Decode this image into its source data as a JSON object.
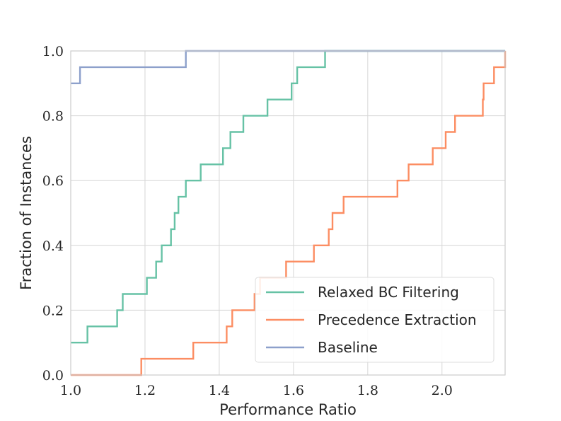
{
  "chart_data": {
    "type": "line",
    "step": true,
    "title": "",
    "xlabel": "Performance Ratio",
    "ylabel": "Fraction of Instances",
    "xlim": [
      1.0,
      2.17
    ],
    "ylim": [
      0.0,
      1.0
    ],
    "xticks": [
      "1.0",
      "1.2",
      "1.4",
      "1.6",
      "1.8",
      "2.0"
    ],
    "yticks": [
      "0.0",
      "0.2",
      "0.4",
      "0.6",
      "0.8",
      "1.0"
    ],
    "grid": true,
    "legend_position": "lower-right",
    "series": [
      {
        "name": "Relaxed BC Filtering",
        "color": "#66c2a5",
        "points": [
          [
            1.0,
            0.1
          ],
          [
            1.045,
            0.1
          ],
          [
            1.045,
            0.15
          ],
          [
            1.125,
            0.15
          ],
          [
            1.125,
            0.2
          ],
          [
            1.14,
            0.2
          ],
          [
            1.14,
            0.25
          ],
          [
            1.205,
            0.25
          ],
          [
            1.205,
            0.3
          ],
          [
            1.23,
            0.3
          ],
          [
            1.23,
            0.35
          ],
          [
            1.245,
            0.35
          ],
          [
            1.245,
            0.4
          ],
          [
            1.27,
            0.4
          ],
          [
            1.27,
            0.45
          ],
          [
            1.28,
            0.45
          ],
          [
            1.28,
            0.5
          ],
          [
            1.29,
            0.5
          ],
          [
            1.29,
            0.55
          ],
          [
            1.31,
            0.55
          ],
          [
            1.31,
            0.6
          ],
          [
            1.35,
            0.6
          ],
          [
            1.35,
            0.65
          ],
          [
            1.41,
            0.65
          ],
          [
            1.41,
            0.7
          ],
          [
            1.43,
            0.7
          ],
          [
            1.43,
            0.75
          ],
          [
            1.465,
            0.75
          ],
          [
            1.465,
            0.8
          ],
          [
            1.53,
            0.8
          ],
          [
            1.53,
            0.85
          ],
          [
            1.595,
            0.85
          ],
          [
            1.595,
            0.9
          ],
          [
            1.61,
            0.9
          ],
          [
            1.61,
            0.95
          ],
          [
            1.685,
            0.95
          ],
          [
            1.685,
            1.0
          ],
          [
            2.17,
            1.0
          ]
        ]
      },
      {
        "name": "Precedence Extraction",
        "color": "#fc8d62",
        "points": [
          [
            1.0,
            0.0
          ],
          [
            1.19,
            0.0
          ],
          [
            1.19,
            0.05
          ],
          [
            1.33,
            0.05
          ],
          [
            1.33,
            0.1
          ],
          [
            1.42,
            0.1
          ],
          [
            1.42,
            0.15
          ],
          [
            1.435,
            0.15
          ],
          [
            1.435,
            0.2
          ],
          [
            1.495,
            0.2
          ],
          [
            1.495,
            0.25
          ],
          [
            1.51,
            0.25
          ],
          [
            1.51,
            0.3
          ],
          [
            1.58,
            0.3
          ],
          [
            1.58,
            0.35
          ],
          [
            1.655,
            0.35
          ],
          [
            1.655,
            0.4
          ],
          [
            1.695,
            0.4
          ],
          [
            1.695,
            0.45
          ],
          [
            1.705,
            0.45
          ],
          [
            1.705,
            0.5
          ],
          [
            1.735,
            0.5
          ],
          [
            1.735,
            0.55
          ],
          [
            1.88,
            0.55
          ],
          [
            1.88,
            0.6
          ],
          [
            1.91,
            0.6
          ],
          [
            1.91,
            0.65
          ],
          [
            1.975,
            0.65
          ],
          [
            1.975,
            0.7
          ],
          [
            2.01,
            0.7
          ],
          [
            2.01,
            0.75
          ],
          [
            2.035,
            0.75
          ],
          [
            2.035,
            0.8
          ],
          [
            2.11,
            0.8
          ],
          [
            2.11,
            0.85
          ],
          [
            2.112,
            0.85
          ],
          [
            2.112,
            0.9
          ],
          [
            2.14,
            0.9
          ],
          [
            2.14,
            0.95
          ],
          [
            2.17,
            0.95
          ],
          [
            2.17,
            1.0
          ]
        ]
      },
      {
        "name": "Baseline",
        "color": "#8da0cb",
        "points": [
          [
            1.0,
            0.9
          ],
          [
            1.025,
            0.9
          ],
          [
            1.025,
            0.95
          ],
          [
            1.31,
            0.95
          ],
          [
            1.31,
            1.0
          ],
          [
            2.17,
            1.0
          ]
        ]
      }
    ]
  }
}
